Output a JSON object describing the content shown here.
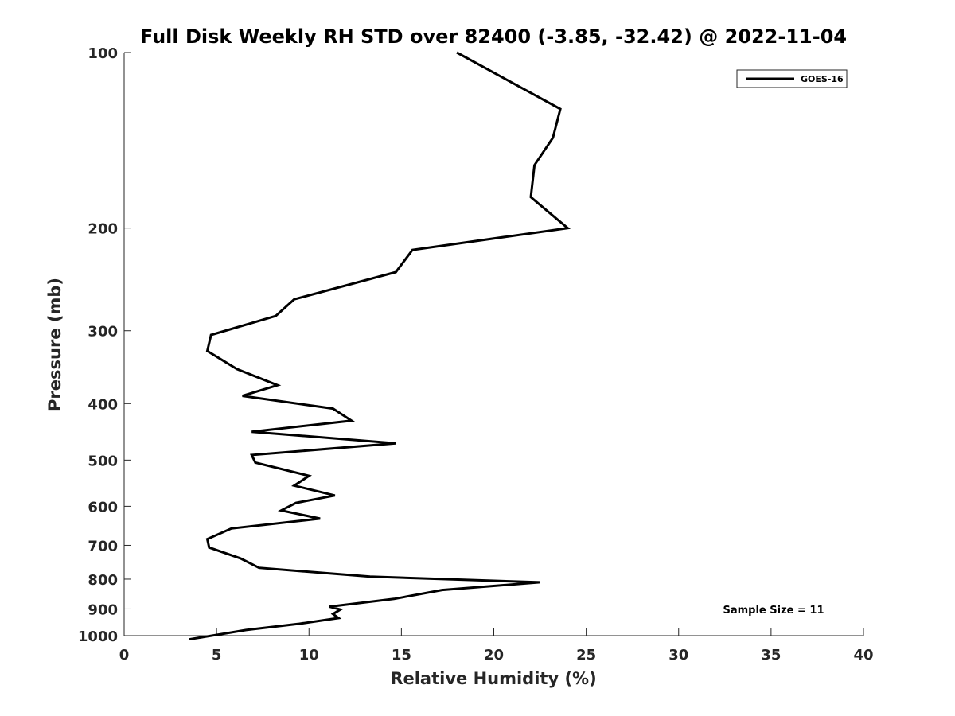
{
  "chart_data": {
    "type": "line",
    "title": "Full Disk Weekly RH STD over 82400 (-3.85, -32.42) @ 2022-11-04",
    "xlabel": "Relative Humidity (%)",
    "ylabel": "Pressure (mb)",
    "xlim": [
      0,
      40
    ],
    "ylim": [
      1000,
      100
    ],
    "yscale": "log",
    "grid": false,
    "xticks": [
      0,
      5,
      10,
      15,
      20,
      25,
      30,
      35,
      40
    ],
    "yticks": [
      100,
      200,
      300,
      400,
      500,
      600,
      700,
      800,
      900,
      1000
    ],
    "legend": {
      "location": "top-right",
      "entries": [
        "GOES-16"
      ]
    },
    "annotation": "Sample Size = 11",
    "series": [
      {
        "name": "GOES-16",
        "color": "#000000",
        "x": [
          18.0,
          23.6,
          23.2,
          22.2,
          22.0,
          24.0,
          15.6,
          14.7,
          9.2,
          8.2,
          4.7,
          4.5,
          6.1,
          8.3,
          6.4,
          11.3,
          12.3,
          6.9,
          14.7,
          6.9,
          7.1,
          10.0,
          9.2,
          11.4,
          9.3,
          8.5,
          10.6,
          5.8,
          4.5,
          4.6,
          6.3,
          7.3,
          13.3,
          22.5,
          17.2,
          14.6,
          11.1,
          11.7,
          11.3,
          11.6,
          9.4,
          6.6,
          3.5
        ],
        "y": [
          100,
          125,
          140,
          156,
          177,
          200,
          218,
          238,
          265,
          283,
          305,
          325,
          349,
          372,
          388,
          408,
          428,
          447,
          468,
          490,
          505,
          532,
          553,
          575,
          592,
          610,
          630,
          655,
          683,
          706,
          737,
          765,
          792,
          810,
          835,
          865,
          892,
          902,
          918,
          933,
          955,
          978,
          1015
        ]
      }
    ]
  }
}
